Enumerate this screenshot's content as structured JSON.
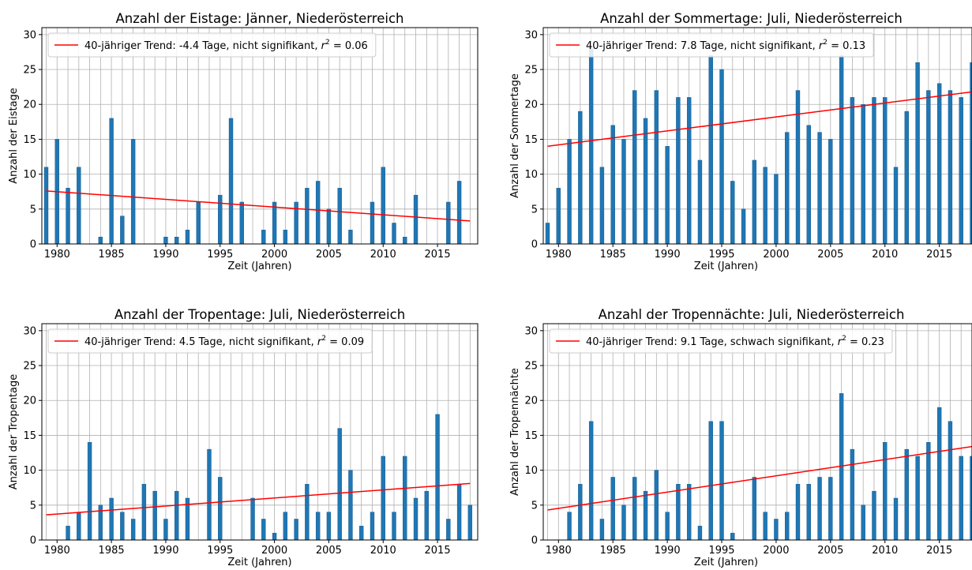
{
  "chart_data": [
    {
      "type": "bar",
      "title": "Anzahl der Eistage: Jänner, Niederösterreich",
      "xlabel": "Zeit (Jahren)",
      "ylabel": "Anzahl der Eistage",
      "xlim": [
        1978.6,
        2018.7
      ],
      "ylim": [
        0,
        31
      ],
      "xticks": [
        1980,
        1985,
        1990,
        1995,
        2000,
        2005,
        2010,
        2015
      ],
      "yticks": [
        0,
        5,
        10,
        15,
        20,
        25,
        30
      ],
      "grid": true,
      "legend_position": "top-left",
      "bar_color": "#1f77b4",
      "trend_color": "#ff0000",
      "x": [
        1979,
        1980,
        1981,
        1982,
        1983,
        1984,
        1985,
        1986,
        1987,
        1988,
        1989,
        1990,
        1991,
        1992,
        1993,
        1994,
        1995,
        1996,
        1997,
        1998,
        1999,
        2000,
        2001,
        2002,
        2003,
        2004,
        2005,
        2006,
        2007,
        2008,
        2009,
        2010,
        2011,
        2012,
        2013,
        2014,
        2015,
        2016,
        2017,
        2018
      ],
      "values": [
        11,
        15,
        8,
        11,
        0,
        1,
        18,
        4,
        15,
        0,
        0,
        1,
        1,
        2,
        6,
        0,
        7,
        18,
        6,
        0,
        2,
        6,
        2,
        6,
        8,
        9,
        5,
        8,
        2,
        0,
        6,
        11,
        3,
        1,
        7,
        0,
        0,
        6,
        9,
        0
      ],
      "trend": {
        "label_before_r2": "40-jähriger Trend: -4.4 Tage, nicht signifikant, ",
        "r2_value": "0.06",
        "x": [
          1979,
          2018
        ],
        "y": [
          7.6,
          3.3
        ]
      }
    },
    {
      "type": "bar",
      "title": "Anzahl der Sommertage: Juli, Niederösterreich",
      "xlabel": "Zeit (Jahren)",
      "ylabel": "Anzahl der Sommertage",
      "xlim": [
        1978.6,
        2018.0
      ],
      "ylim": [
        0,
        31
      ],
      "xticks": [
        1980,
        1985,
        1990,
        1995,
        2000,
        2005,
        2010,
        2015
      ],
      "yticks": [
        0,
        5,
        10,
        15,
        20,
        25,
        30
      ],
      "grid": true,
      "legend_position": "top-left",
      "bar_color": "#1f77b4",
      "trend_color": "#ff0000",
      "x": [
        1979,
        1980,
        1981,
        1982,
        1983,
        1984,
        1985,
        1986,
        1987,
        1988,
        1989,
        1990,
        1991,
        1992,
        1993,
        1994,
        1995,
        1996,
        1997,
        1998,
        1999,
        2000,
        2001,
        2002,
        2003,
        2004,
        2005,
        2006,
        2007,
        2008,
        2009,
        2010,
        2011,
        2012,
        2013,
        2014,
        2015,
        2016,
        2017,
        2018
      ],
      "values": [
        3,
        8,
        15,
        19,
        28,
        11,
        17,
        15,
        22,
        18,
        22,
        14,
        21,
        21,
        12,
        27,
        25,
        9,
        5,
        12,
        11,
        10,
        16,
        22,
        17,
        16,
        15,
        27,
        21,
        20,
        21,
        21,
        11,
        19,
        26,
        22,
        23,
        22,
        21,
        26
      ],
      "trend": {
        "label_before_r2": "40-jähriger Trend: 7.8 Tage, nicht signifikant, ",
        "r2_value": "0.13",
        "x": [
          1979,
          2018
        ],
        "y": [
          14.0,
          21.8
        ]
      }
    },
    {
      "type": "bar",
      "title": "Anzahl der Tropentage: Juli, Niederösterreich",
      "xlabel": "Zeit (Jahren)",
      "ylabel": "Anzahl der Tropentage",
      "xlim": [
        1978.6,
        2018.7
      ],
      "ylim": [
        0,
        31
      ],
      "xticks": [
        1980,
        1985,
        1990,
        1995,
        2000,
        2005,
        2010,
        2015
      ],
      "yticks": [
        0,
        5,
        10,
        15,
        20,
        25,
        30
      ],
      "grid": true,
      "legend_position": "top-left",
      "bar_color": "#1f77b4",
      "trend_color": "#ff0000",
      "x": [
        1979,
        1980,
        1981,
        1982,
        1983,
        1984,
        1985,
        1986,
        1987,
        1988,
        1989,
        1990,
        1991,
        1992,
        1993,
        1994,
        1995,
        1996,
        1997,
        1998,
        1999,
        2000,
        2001,
        2002,
        2003,
        2004,
        2005,
        2006,
        2007,
        2008,
        2009,
        2010,
        2011,
        2012,
        2013,
        2014,
        2015,
        2016,
        2017,
        2018
      ],
      "values": [
        0,
        0,
        2,
        4,
        14,
        5,
        6,
        4,
        3,
        8,
        7,
        3,
        7,
        6,
        0,
        13,
        9,
        0,
        0,
        6,
        3,
        1,
        4,
        3,
        8,
        4,
        4,
        16,
        10,
        2,
        4,
        12,
        4,
        12,
        6,
        7,
        18,
        3,
        8,
        5
      ],
      "trend": {
        "label_before_r2": "40-jähriger Trend: 4.5 Tage, nicht signifikant, ",
        "r2_value": "0.09",
        "x": [
          1979,
          2018
        ],
        "y": [
          3.6,
          8.1
        ]
      }
    },
    {
      "type": "bar",
      "title": "Anzahl der Tropennächte: Juli, Niederösterreich",
      "xlabel": "Zeit (Jahren)",
      "ylabel": "Anzahl der Tropennächte",
      "xlim": [
        1978.6,
        2018.0
      ],
      "ylim": [
        0,
        31
      ],
      "xticks": [
        1980,
        1985,
        1990,
        1995,
        2000,
        2005,
        2010,
        2015
      ],
      "yticks": [
        0,
        5,
        10,
        15,
        20,
        25,
        30
      ],
      "grid": true,
      "legend_position": "top-left",
      "bar_color": "#1f77b4",
      "trend_color": "#ff0000",
      "x": [
        1979,
        1980,
        1981,
        1982,
        1983,
        1984,
        1985,
        1986,
        1987,
        1988,
        1989,
        1990,
        1991,
        1992,
        1993,
        1994,
        1995,
        1996,
        1997,
        1998,
        1999,
        2000,
        2001,
        2002,
        2003,
        2004,
        2005,
        2006,
        2007,
        2008,
        2009,
        2010,
        2011,
        2012,
        2013,
        2014,
        2015,
        2016,
        2017,
        2018
      ],
      "values": [
        0,
        0,
        4,
        8,
        17,
        3,
        9,
        5,
        9,
        7,
        10,
        4,
        8,
        8,
        2,
        17,
        17,
        1,
        0,
        9,
        4,
        3,
        4,
        8,
        8,
        9,
        9,
        21,
        13,
        5,
        7,
        14,
        6,
        13,
        12,
        14,
        19,
        17,
        12,
        12
      ],
      "trend": {
        "label_before_r2": "40-jähriger Trend: 9.1 Tage, schwach signifikant, ",
        "r2_value": "0.23",
        "x": [
          1979,
          2018
        ],
        "y": [
          4.3,
          13.4
        ]
      }
    }
  ]
}
